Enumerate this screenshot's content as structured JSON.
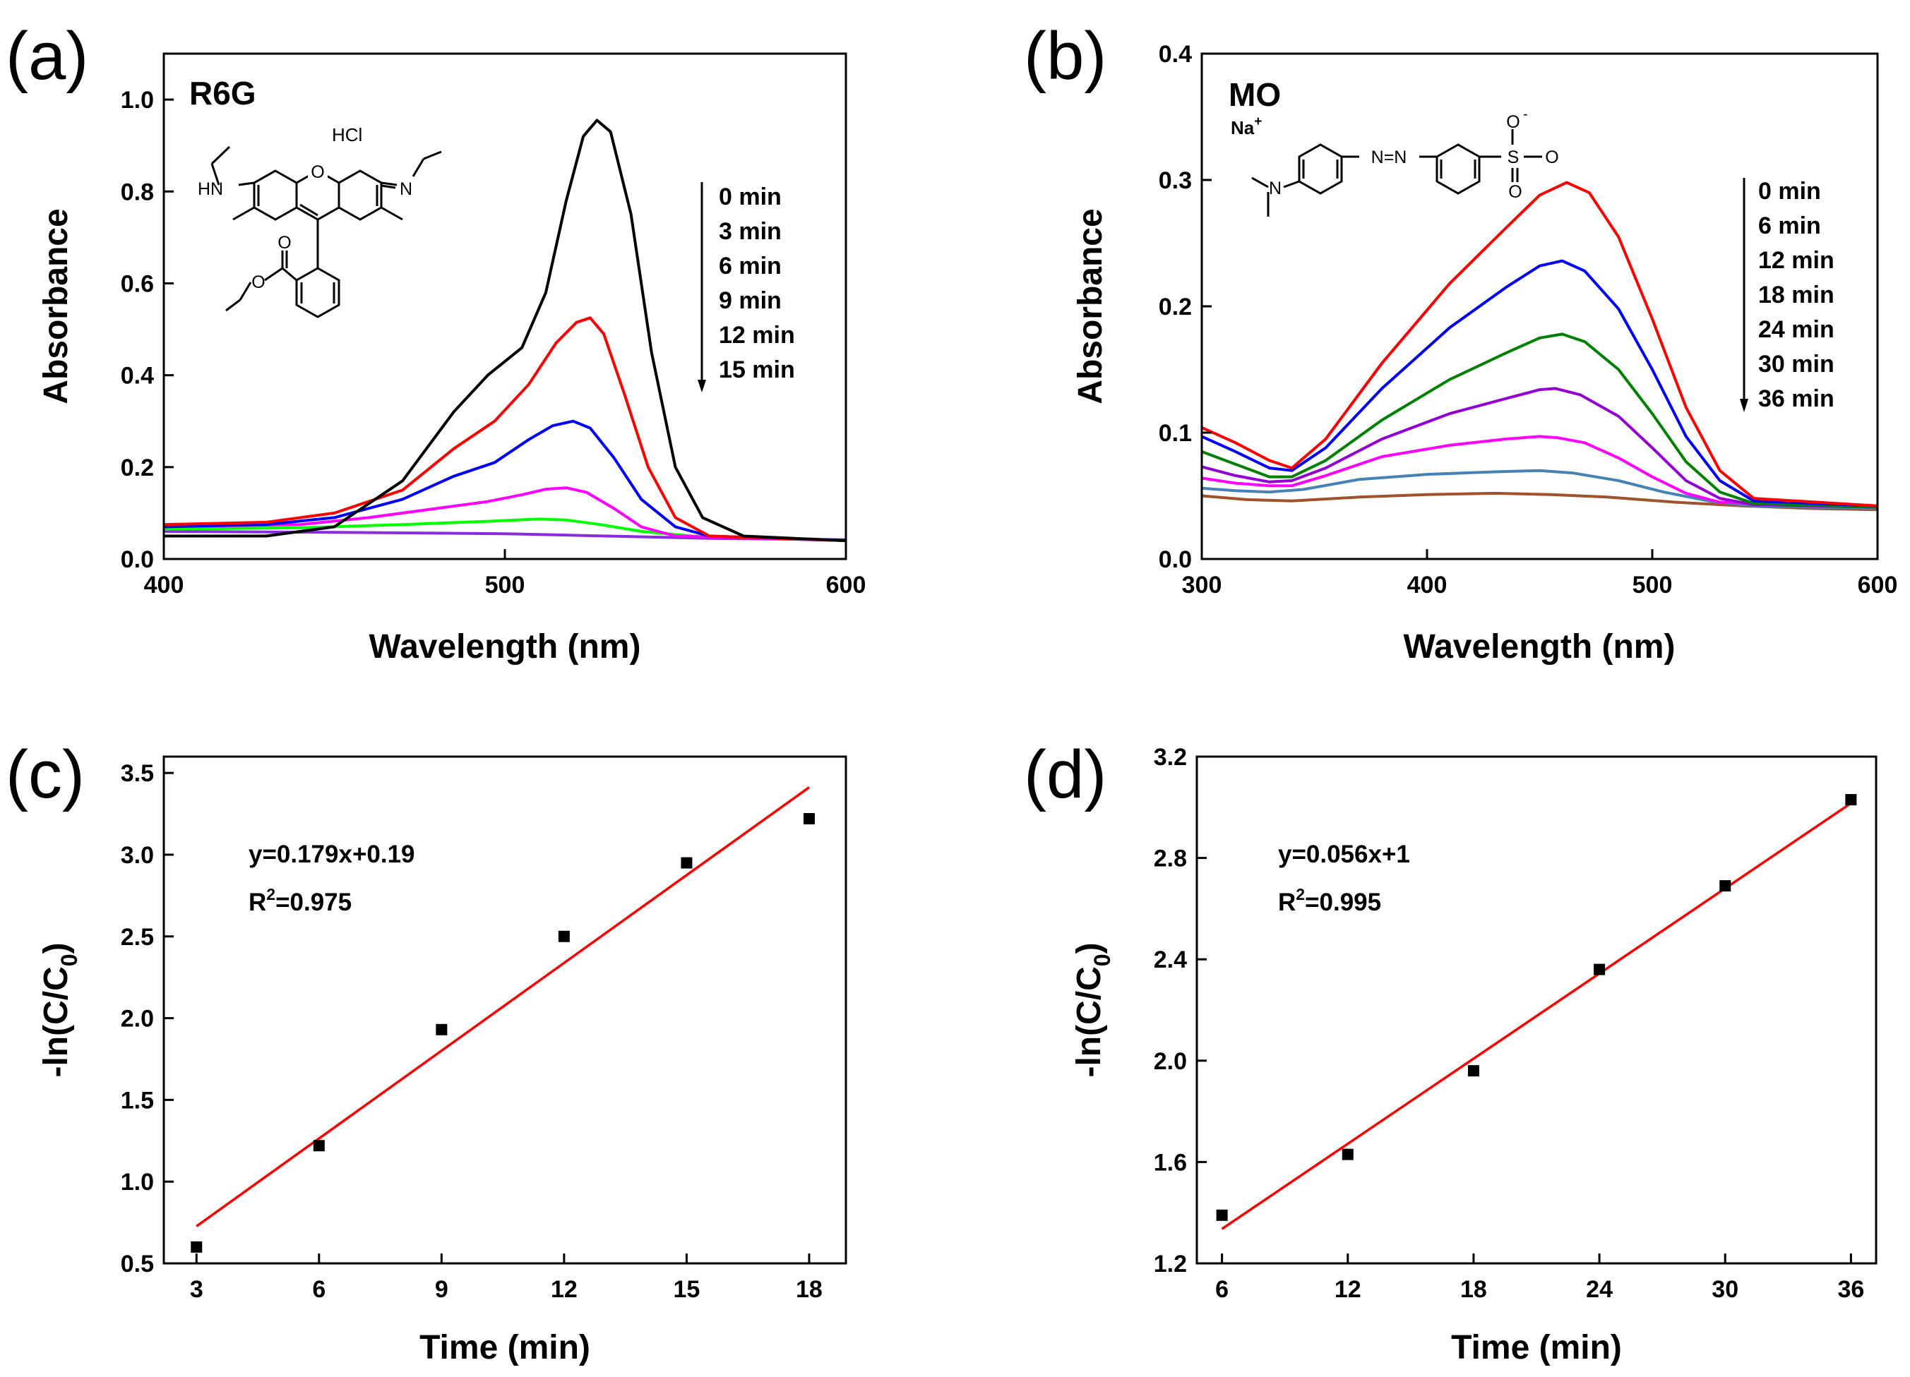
{
  "chart_data": [
    {
      "id": "a",
      "type": "line",
      "panel_label": "(a)",
      "xlabel": "Wavelength (nm)",
      "ylabel": "Absorbance",
      "xlim": [
        400,
        600
      ],
      "ylim": [
        0.0,
        1.1
      ],
      "xticks": [
        400,
        500,
        600
      ],
      "xtick_labels": [
        "400",
        "500",
        "600"
      ],
      "yticks": [
        0.0,
        0.2,
        0.4,
        0.6,
        0.8,
        1.0
      ],
      "ytick_labels": [
        "0.0",
        "0.2",
        "0.4",
        "0.6",
        "0.8",
        "1.0"
      ],
      "compound": "R6G",
      "salt_label": "HCl",
      "structure_labels": {
        "hn": "HN",
        "n": "N",
        "o_ring": "O",
        "o_carbonyl": "O",
        "o_ester": "O"
      },
      "legend": [
        "0 min",
        "3 min",
        "6 min",
        "9 min",
        "12 min",
        "15 min"
      ],
      "series": [
        {
          "name": "0 min",
          "color": "#000000",
          "points": [
            [
              400,
              0.05
            ],
            [
              430,
              0.05
            ],
            [
              450,
              0.07
            ],
            [
              470,
              0.17
            ],
            [
              485,
              0.32
            ],
            [
              495,
              0.4
            ],
            [
              505,
              0.46
            ],
            [
              512,
              0.58
            ],
            [
              518,
              0.78
            ],
            [
              523,
              0.92
            ],
            [
              527,
              0.955
            ],
            [
              531,
              0.93
            ],
            [
              537,
              0.75
            ],
            [
              543,
              0.45
            ],
            [
              550,
              0.2
            ],
            [
              558,
              0.09
            ],
            [
              570,
              0.05
            ],
            [
              600,
              0.04
            ]
          ]
        },
        {
          "name": "3 min",
          "color": "#ff0000",
          "points": [
            [
              400,
              0.075
            ],
            [
              430,
              0.08
            ],
            [
              450,
              0.1
            ],
            [
              470,
              0.15
            ],
            [
              485,
              0.24
            ],
            [
              497,
              0.3
            ],
            [
              507,
              0.38
            ],
            [
              515,
              0.47
            ],
            [
              521,
              0.515
            ],
            [
              525,
              0.525
            ],
            [
              529,
              0.49
            ],
            [
              535,
              0.36
            ],
            [
              542,
              0.2
            ],
            [
              550,
              0.09
            ],
            [
              560,
              0.05
            ],
            [
              600,
              0.04
            ]
          ]
        },
        {
          "name": "6 min",
          "color": "#0000ff",
          "points": [
            [
              400,
              0.07
            ],
            [
              430,
              0.075
            ],
            [
              450,
              0.09
            ],
            [
              470,
              0.13
            ],
            [
              485,
              0.18
            ],
            [
              497,
              0.21
            ],
            [
              507,
              0.26
            ],
            [
              514,
              0.29
            ],
            [
              520,
              0.3
            ],
            [
              525,
              0.285
            ],
            [
              532,
              0.22
            ],
            [
              540,
              0.13
            ],
            [
              550,
              0.07
            ],
            [
              560,
              0.05
            ],
            [
              600,
              0.04
            ]
          ]
        },
        {
          "name": "9 min",
          "color": "#ff00ff",
          "points": [
            [
              400,
              0.07
            ],
            [
              440,
              0.075
            ],
            [
              460,
              0.09
            ],
            [
              480,
              0.11
            ],
            [
              495,
              0.125
            ],
            [
              505,
              0.14
            ],
            [
              512,
              0.152
            ],
            [
              518,
              0.155
            ],
            [
              524,
              0.145
            ],
            [
              532,
              0.11
            ],
            [
              540,
              0.07
            ],
            [
              550,
              0.05
            ],
            [
              600,
              0.04
            ]
          ]
        },
        {
          "name": "12 min",
          "color": "#00ff00",
          "points": [
            [
              400,
              0.065
            ],
            [
              440,
              0.068
            ],
            [
              470,
              0.075
            ],
            [
              495,
              0.082
            ],
            [
              510,
              0.087
            ],
            [
              518,
              0.085
            ],
            [
              528,
              0.075
            ],
            [
              540,
              0.06
            ],
            [
              555,
              0.05
            ],
            [
              600,
              0.04
            ]
          ]
        },
        {
          "name": "15 min",
          "color": "#8a2be2",
          "points": [
            [
              400,
              0.06
            ],
            [
              450,
              0.058
            ],
            [
              500,
              0.055
            ],
            [
              530,
              0.05
            ],
            [
              560,
              0.045
            ],
            [
              600,
              0.042
            ]
          ]
        }
      ]
    },
    {
      "id": "b",
      "type": "line",
      "panel_label": "(b)",
      "xlabel": "Wavelength (nm)",
      "ylabel": "Absorbance",
      "xlim": [
        300,
        600
      ],
      "ylim": [
        0.0,
        0.4
      ],
      "xticks": [
        300,
        400,
        500,
        600
      ],
      "xtick_labels": [
        "300",
        "400",
        "500",
        "600"
      ],
      "yticks": [
        0.0,
        0.1,
        0.2,
        0.3,
        0.4
      ],
      "ytick_labels": [
        "0.0",
        "0.1",
        "0.2",
        "0.3",
        "0.4"
      ],
      "compound": "MO",
      "counterion": "Na",
      "counterion_charge": "+",
      "structure_labels": {
        "azo": "N=N",
        "sulfur": "S",
        "oxygen": "O",
        "charge": "-",
        "amine": "N"
      },
      "legend": [
        "0 min",
        "6 min",
        "12 min",
        "18 min",
        "24 min",
        "30 min",
        "36 min"
      ],
      "series": [
        {
          "name": "0 min",
          "color": "#ff0000",
          "points": [
            [
              300,
              0.104
            ],
            [
              315,
              0.092
            ],
            [
              330,
              0.078
            ],
            [
              340,
              0.072
            ],
            [
              355,
              0.095
            ],
            [
              380,
              0.155
            ],
            [
              410,
              0.218
            ],
            [
              435,
              0.262
            ],
            [
              450,
              0.288
            ],
            [
              462,
              0.298
            ],
            [
              472,
              0.29
            ],
            [
              485,
              0.255
            ],
            [
              500,
              0.19
            ],
            [
              515,
              0.12
            ],
            [
              530,
              0.07
            ],
            [
              545,
              0.048
            ],
            [
              600,
              0.042
            ]
          ]
        },
        {
          "name": "6 min",
          "color": "#0000ff",
          "points": [
            [
              300,
              0.097
            ],
            [
              315,
              0.085
            ],
            [
              330,
              0.072
            ],
            [
              340,
              0.07
            ],
            [
              355,
              0.088
            ],
            [
              380,
              0.135
            ],
            [
              410,
              0.183
            ],
            [
              435,
              0.215
            ],
            [
              450,
              0.232
            ],
            [
              460,
              0.236
            ],
            [
              470,
              0.228
            ],
            [
              485,
              0.198
            ],
            [
              500,
              0.15
            ],
            [
              515,
              0.097
            ],
            [
              530,
              0.062
            ],
            [
              545,
              0.046
            ],
            [
              600,
              0.042
            ]
          ]
        },
        {
          "name": "12 min",
          "color": "#008000",
          "points": [
            [
              300,
              0.085
            ],
            [
              315,
              0.075
            ],
            [
              330,
              0.065
            ],
            [
              340,
              0.065
            ],
            [
              355,
              0.078
            ],
            [
              380,
              0.11
            ],
            [
              410,
              0.142
            ],
            [
              435,
              0.163
            ],
            [
              450,
              0.175
            ],
            [
              460,
              0.178
            ],
            [
              470,
              0.172
            ],
            [
              485,
              0.15
            ],
            [
              500,
              0.115
            ],
            [
              515,
              0.077
            ],
            [
              530,
              0.053
            ],
            [
              545,
              0.044
            ],
            [
              600,
              0.041
            ]
          ]
        },
        {
          "name": "18 min",
          "color": "#9400d3",
          "points": [
            [
              300,
              0.073
            ],
            [
              315,
              0.066
            ],
            [
              330,
              0.061
            ],
            [
              340,
              0.062
            ],
            [
              355,
              0.072
            ],
            [
              380,
              0.095
            ],
            [
              410,
              0.115
            ],
            [
              435,
              0.127
            ],
            [
              450,
              0.134
            ],
            [
              457,
              0.135
            ],
            [
              468,
              0.13
            ],
            [
              485,
              0.113
            ],
            [
              500,
              0.088
            ],
            [
              515,
              0.062
            ],
            [
              530,
              0.048
            ],
            [
              545,
              0.043
            ],
            [
              600,
              0.041
            ]
          ]
        },
        {
          "name": "24 min",
          "color": "#ff00ff",
          "points": [
            [
              300,
              0.064
            ],
            [
              315,
              0.06
            ],
            [
              330,
              0.058
            ],
            [
              340,
              0.058
            ],
            [
              355,
              0.066
            ],
            [
              380,
              0.081
            ],
            [
              410,
              0.09
            ],
            [
              435,
              0.095
            ],
            [
              450,
              0.097
            ],
            [
              458,
              0.096
            ],
            [
              470,
              0.092
            ],
            [
              485,
              0.08
            ],
            [
              500,
              0.065
            ],
            [
              515,
              0.052
            ],
            [
              530,
              0.045
            ],
            [
              600,
              0.041
            ]
          ]
        },
        {
          "name": "30 min",
          "color": "#4682b4",
          "points": [
            [
              300,
              0.056
            ],
            [
              315,
              0.054
            ],
            [
              330,
              0.053
            ],
            [
              345,
              0.055
            ],
            [
              370,
              0.063
            ],
            [
              400,
              0.067
            ],
            [
              430,
              0.069
            ],
            [
              450,
              0.07
            ],
            [
              465,
              0.068
            ],
            [
              485,
              0.062
            ],
            [
              505,
              0.053
            ],
            [
              525,
              0.046
            ],
            [
              545,
              0.042
            ],
            [
              600,
              0.04
            ]
          ]
        },
        {
          "name": "36 min",
          "color": "#a0522d",
          "points": [
            [
              300,
              0.05
            ],
            [
              320,
              0.047
            ],
            [
              340,
              0.046
            ],
            [
              370,
              0.049
            ],
            [
              400,
              0.051
            ],
            [
              430,
              0.052
            ],
            [
              455,
              0.051
            ],
            [
              480,
              0.049
            ],
            [
              510,
              0.045
            ],
            [
              540,
              0.042
            ],
            [
              570,
              0.04
            ],
            [
              600,
              0.039
            ]
          ]
        }
      ]
    },
    {
      "id": "c",
      "type": "scatter",
      "panel_label": "(c)",
      "xlabel": "Time (min)",
      "ylabel": "-ln(C/C",
      "ylabel_sub": "0",
      "ylabel_close": ")",
      "xlim": [
        2.2,
        18.9
      ],
      "ylim": [
        0.5,
        3.6
      ],
      "xticks": [
        3,
        6,
        9,
        12,
        15,
        18
      ],
      "xtick_labels": [
        "3",
        "6",
        "9",
        "12",
        "15",
        "18"
      ],
      "yticks": [
        0.5,
        1.0,
        1.5,
        2.0,
        2.5,
        3.0,
        3.5
      ],
      "ytick_labels": [
        "0.5",
        "1.0",
        "1.5",
        "2.0",
        "2.5",
        "3.0",
        "3.5"
      ],
      "x": [
        3,
        6,
        9,
        12,
        15,
        18
      ],
      "y": [
        0.6,
        1.22,
        1.93,
        2.5,
        2.95,
        3.22
      ],
      "fit": {
        "slope": 0.179,
        "intercept": 0.19,
        "x_range": [
          3,
          18
        ],
        "color": "#ff0000"
      },
      "equation": "y=0.179x+0.19",
      "r2_prefix": "R",
      "r2_sup": "2",
      "r2_value": "=0.975"
    },
    {
      "id": "d",
      "type": "scatter",
      "panel_label": "(d)",
      "xlabel": "Time (min)",
      "ylabel": "-ln(C/C",
      "ylabel_sub": "0",
      "ylabel_close": ")",
      "xlim": [
        4.8,
        37.2
      ],
      "ylim": [
        1.2,
        3.2
      ],
      "xticks": [
        6,
        12,
        18,
        24,
        30,
        36
      ],
      "xtick_labels": [
        "6",
        "12",
        "18",
        "24",
        "30",
        "36"
      ],
      "yticks": [
        1.2,
        1.6,
        2.0,
        2.4,
        2.8,
        3.2
      ],
      "ytick_labels": [
        "1.2",
        "1.6",
        "2.0",
        "2.4",
        "2.8",
        "3.2"
      ],
      "x": [
        6,
        12,
        18,
        24,
        30,
        36
      ],
      "y": [
        1.39,
        1.63,
        1.96,
        2.36,
        2.69,
        3.03
      ],
      "fit": {
        "slope": 0.056,
        "intercept": 1.0,
        "x_range": [
          6,
          36
        ],
        "color": "#ff0000"
      },
      "equation": "y=0.056x+1",
      "r2_prefix": "R",
      "r2_sup": "2",
      "r2_value": "=0.995"
    }
  ]
}
